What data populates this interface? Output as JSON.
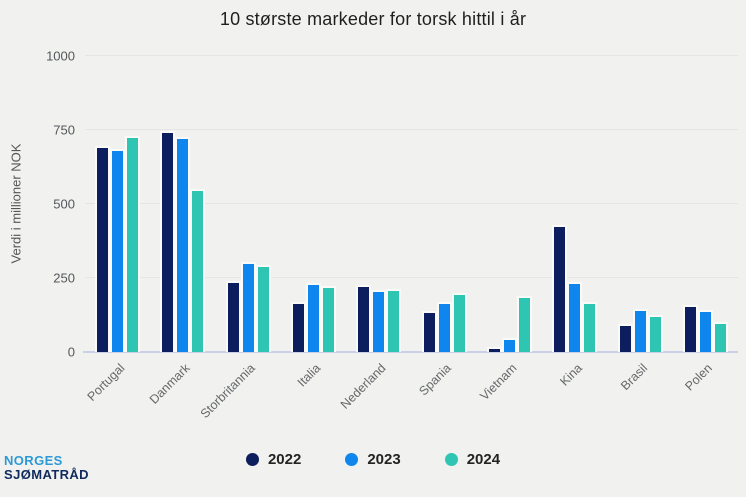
{
  "title": "10 største markeder for torsk hittil i år",
  "chart_data": {
    "type": "bar",
    "title": "10 største markeder for torsk hittil i år",
    "ylabel": "Verdi i millioner NOK",
    "xlabel": "",
    "ylim": [
      0,
      1000
    ],
    "yticks": [
      0,
      250,
      500,
      750,
      1000
    ],
    "grid": true,
    "legend_position": "bottom",
    "categories": [
      "Portugal",
      "Danmark",
      "Storbritannia",
      "Italia",
      "Nederland",
      "Spania",
      "Vietnam",
      "Kina",
      "Brasil",
      "Polen"
    ],
    "series": [
      {
        "name": "2022",
        "color": "#0c1e5e",
        "values": [
          695,
          745,
          240,
          169,
          228,
          140,
          18,
          430,
          96,
          158
        ]
      },
      {
        "name": "2023",
        "color": "#0e86ed",
        "values": [
          685,
          725,
          305,
          233,
          208,
          170,
          48,
          238,
          147,
          141
        ]
      },
      {
        "name": "2024",
        "color": "#2fc5b3",
        "values": [
          730,
          551,
          294,
          222,
          213,
          198,
          190,
          170,
          125,
          102
        ]
      }
    ]
  },
  "logo": {
    "line1": "NORGES",
    "line2": "SJØMATRÅD"
  },
  "colors": {
    "background": "#f1f2ef",
    "gridline": "#e3e6e1",
    "baseline": "#c9d0e7",
    "title_text": "#1f1f1f",
    "tick_text": "#54575b",
    "category_text": "#65676a",
    "logo_blue": "#2b9ad6",
    "logo_navy": "#102a5e"
  }
}
